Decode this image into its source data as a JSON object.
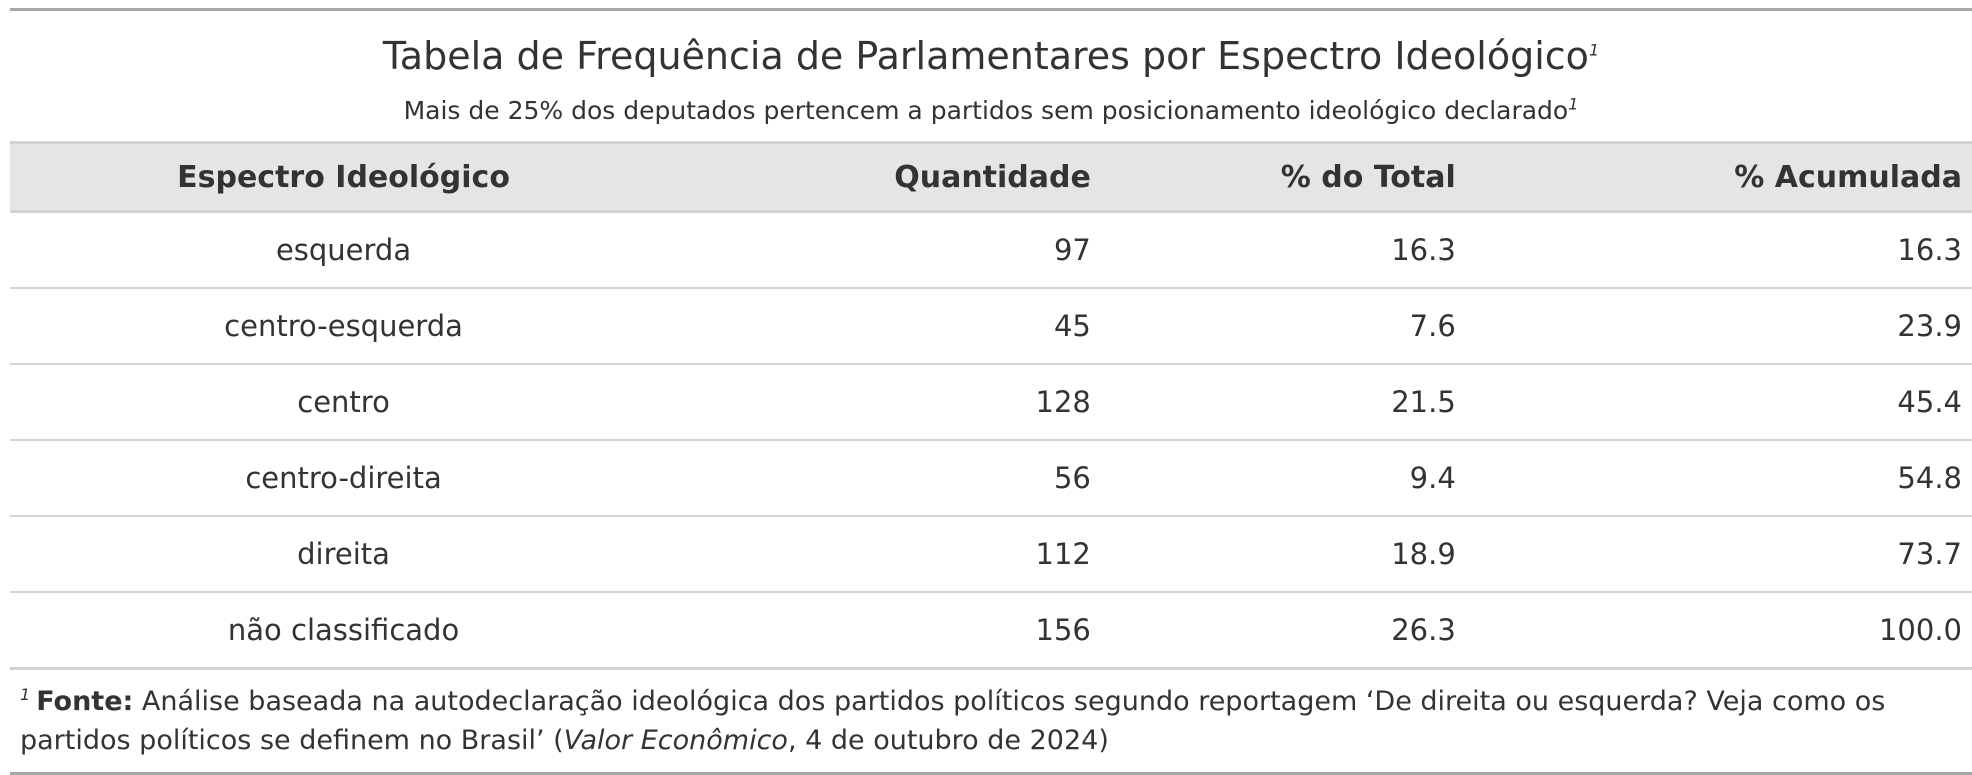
{
  "chart_data": {
    "type": "table",
    "title": "Tabela de Frequência de Parlamentares por Espectro Ideológico",
    "title_footnote_mark": "1",
    "subtitle": "Mais de 25% dos deputados pertencem a partidos sem posicionamento ideológico declarado",
    "subtitle_footnote_mark": "1",
    "columns": [
      "Espectro Ideológico",
      "Quantidade",
      "% do Total",
      "% Acumulada"
    ],
    "rows": [
      [
        "esquerda",
        "97",
        "16.3",
        "16.3"
      ],
      [
        "centro-esquerda",
        "45",
        "7.6",
        "23.9"
      ],
      [
        "centro",
        "128",
        "21.5",
        "45.4"
      ],
      [
        "centro-direita",
        "56",
        "9.4",
        "54.8"
      ],
      [
        "direita",
        "112",
        "18.9",
        "73.7"
      ],
      [
        "não classificado",
        "156",
        "26.3",
        "100.0"
      ]
    ],
    "footnote": {
      "mark": "1",
      "label": "Fonte:",
      "text_before": " Análise baseada na autodeclaração ideológica dos partidos políticos segundo reportagem ‘De direita ou esquerda? Veja como os partidos políticos se definem no Brasil’ (",
      "publication": "Valor Econômico",
      "text_after": ", 4 de outubro de 2024)"
    }
  }
}
